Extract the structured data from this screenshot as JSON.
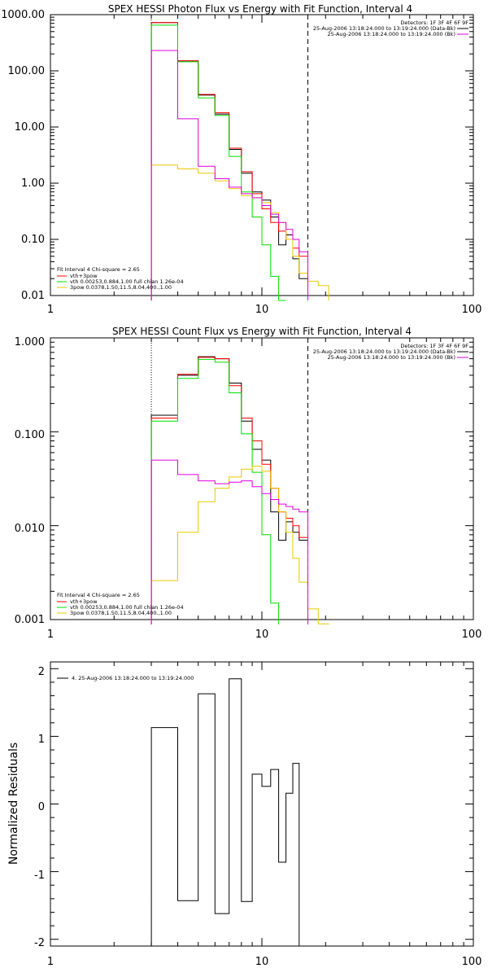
{
  "chart_data": [
    {
      "type": "line",
      "title": "SPEX HESSI Photon Flux vs Energy with Fit Function, Interval 4",
      "xscale": "log",
      "yscale": "log",
      "xlim": [
        1,
        100
      ],
      "ylim": [
        0.01,
        1000
      ],
      "xticks": [
        1,
        10,
        100
      ],
      "xtick_labels": [
        "1",
        "10",
        "100"
      ],
      "yticks": [
        0.01,
        0.1,
        1,
        10,
        100,
        1000
      ],
      "ytick_labels": [
        "0.01",
        "0.10",
        "1.00",
        "10.00",
        "100.00",
        "1000.00"
      ],
      "vlines": [
        {
          "x": 3,
          "style": "dotted"
        },
        {
          "x": 16.5,
          "style": "dashed"
        }
      ],
      "legend_top": [
        "Detectors: 1F 3F 4F 6F 9F",
        "25-Aug-2006 13:18:24.000 to 13:19:24.000 (Data-Bk)",
        "25-Aug-2006 13:18:24.000 to 13:19:24.000 (Bk)"
      ],
      "legend_bottom": [
        "Fit Interval 4   Chi-square = 2.65",
        "vth+3pow",
        "vth 0.00253,0.884,1.00   full chian 1.26e-04",
        "3pow 0.0378,1.50,11.5,8.04,400.,1.00"
      ],
      "edges": [
        3,
        4,
        5,
        6,
        7,
        8,
        9,
        10,
        11,
        12,
        13,
        14,
        15,
        16.5
      ],
      "series": [
        {
          "name": "Data-Bk",
          "color": "#000000",
          "values": [
            720,
            150,
            37,
            17,
            4.0,
            1.5,
            0.7,
            0.5,
            0.25,
            0.08,
            0.12,
            0.045,
            0.02
          ]
        },
        {
          "name": "vth+3pow",
          "color": "#ff0000",
          "values": [
            720,
            150,
            38,
            18,
            4.2,
            1.6,
            0.65,
            0.35,
            0.2,
            0.14,
            0.1,
            0.07,
            0.05
          ]
        },
        {
          "name": "vth",
          "color": "#00dd00",
          "values": [
            650,
            145,
            33,
            16,
            3.0,
            0.7,
            0.25,
            0.08,
            0.022,
            0.008
          ]
        },
        {
          "name": "3pow",
          "color": "#e8c800",
          "values": [
            2.1,
            1.8,
            1.5,
            1.1,
            0.8,
            0.6,
            0.55,
            0.45,
            0.3,
            0.2,
            0.1,
            0.05,
            0.025,
            0.018,
            0.015
          ]
        },
        {
          "name": "Bk",
          "color": "#dd00dd",
          "values": [
            230,
            14,
            2.0,
            1.2,
            0.85,
            0.65,
            0.55,
            0.4,
            0.28,
            0.2,
            0.15,
            0.1,
            0.06
          ]
        }
      ]
    },
    {
      "type": "line",
      "title": "SPEX HESSI Count Flux vs Energy with Fit Function, Interval 4",
      "xscale": "log",
      "yscale": "log",
      "xlim": [
        1,
        100
      ],
      "ylim": [
        0.001,
        1
      ],
      "xticks": [
        1,
        10,
        100
      ],
      "xtick_labels": [
        "1",
        "10",
        "100"
      ],
      "yticks": [
        0.001,
        0.01,
        0.1,
        1
      ],
      "ytick_labels": [
        "0.001",
        "0.010",
        "0.100",
        "1.000"
      ],
      "vlines": [
        {
          "x": 3,
          "style": "dotted"
        },
        {
          "x": 16.5,
          "style": "dashed"
        }
      ],
      "legend_top": [
        "Detectors: 1F 3F 4F 6F 9F",
        "25-Aug-2006 13:18:24.000 to 13:19:24.000 (Data-Bk)",
        "25-Aug-2006 13:18:24.000 to 13:19:24.000 (Bk)"
      ],
      "legend_bottom": [
        "Fit Interval 4   Chi-square = 2.65",
        "vth+3pow",
        "vth 0.00253,0.884,1.00   full chian 1.26e-04",
        "3pow 0.0378,1.50,11.5,8.04,400.,1.00"
      ],
      "edges": [
        3,
        4,
        5,
        6,
        7,
        8,
        9,
        10,
        11,
        12,
        13,
        14,
        15,
        16.5
      ],
      "series": [
        {
          "name": "Data-Bk",
          "color": "#000000",
          "values": [
            0.15,
            0.4,
            0.63,
            0.6,
            0.33,
            0.13,
            0.065,
            0.05,
            0.014,
            0.007,
            0.011,
            0.0085,
            0.007
          ]
        },
        {
          "name": "vth+3pow",
          "color": "#ff0000",
          "values": [
            0.14,
            0.41,
            0.62,
            0.6,
            0.31,
            0.14,
            0.08,
            0.045,
            0.025,
            0.014,
            0.012,
            0.01,
            0.0075
          ]
        },
        {
          "name": "vth",
          "color": "#00dd00",
          "values": [
            0.13,
            0.37,
            0.59,
            0.55,
            0.26,
            0.095,
            0.037,
            0.008,
            0.0015
          ]
        },
        {
          "name": "3pow",
          "color": "#e8c800",
          "values": [
            0.0026,
            0.0085,
            0.018,
            0.025,
            0.033,
            0.04,
            0.043,
            0.038,
            0.025,
            0.014,
            0.0085,
            0.0045,
            0.0025,
            0.0013,
            0.0009
          ]
        },
        {
          "name": "Bk",
          "color": "#dd00dd",
          "values": [
            0.05,
            0.035,
            0.03,
            0.028,
            0.029,
            0.03,
            0.026,
            0.022,
            0.019,
            0.017,
            0.016,
            0.015,
            0.014
          ]
        }
      ]
    },
    {
      "type": "line",
      "title": "",
      "xscale": "log",
      "yscale": "linear",
      "xlim": [
        1,
        100
      ],
      "ylim": [
        -2.1,
        2.1
      ],
      "xticks": [
        1,
        10,
        100
      ],
      "xtick_labels": [
        "1",
        "10",
        "100"
      ],
      "yticks": [
        -2,
        -1,
        0,
        1,
        2
      ],
      "ytick_labels": [
        "-2",
        "-1",
        "0",
        "1",
        "2"
      ],
      "ylabel": "Normalized Residuals",
      "legend": "4. 25-Aug-2006 13:18:24.000 to 13:19:24.000",
      "edges": [
        3,
        4,
        5,
        6,
        7,
        8,
        9,
        10,
        11,
        12,
        13,
        14,
        15,
        16.5
      ],
      "series": [
        {
          "name": "4. 25-Aug-2006 13:18:24.000 to 13:19:24.000",
          "color": "#000000",
          "values": [
            1.13,
            -1.43,
            1.63,
            -1.62,
            1.85,
            -1.44,
            0.44,
            0.26,
            0.51,
            -0.86,
            0.16,
            0.6
          ]
        }
      ]
    }
  ]
}
